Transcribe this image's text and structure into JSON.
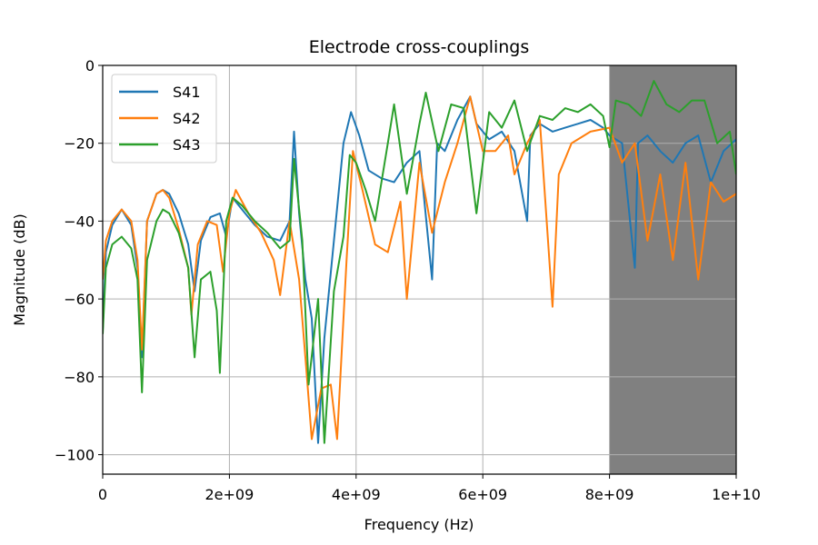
{
  "chart_data": {
    "type": "line",
    "title": "Electrode cross-couplings",
    "xlabel": "Frequency (Hz)",
    "ylabel": "Magnitude (dB)",
    "xlim": [
      0,
      10000000000
    ],
    "ylim": [
      -105,
      0
    ],
    "xticks": [
      0,
      2000000000,
      4000000000,
      6000000000,
      8000000000,
      10000000000
    ],
    "xtick_labels": [
      "0",
      "2e+09",
      "4e+09",
      "6e+09",
      "8e+09",
      "1e+10"
    ],
    "yticks": [
      0,
      -20,
      -40,
      -60,
      -80,
      -100
    ],
    "ytick_labels": [
      "0",
      "−20",
      "−40",
      "−60",
      "−80",
      "−100"
    ],
    "grid": true,
    "legend_position": "top-left",
    "shaded_region": {
      "x_from": 8000000000,
      "x_to": 10000000000,
      "color": "#808080"
    },
    "series": [
      {
        "name": "S41",
        "color": "#1f77b4",
        "x": [
          0,
          50000000,
          150000000,
          300000000,
          450000000,
          550000000,
          620000000,
          700000000,
          850000000,
          950000000,
          1050000000,
          1200000000,
          1350000000,
          1450000000,
          1550000000,
          1700000000,
          1850000000,
          1950000000,
          2050000000,
          2200000000,
          2400000000,
          2600000000,
          2800000000,
          2950000000,
          3020000000,
          3100000000,
          3200000000,
          3300000000,
          3400000000,
          3500000000,
          3650000000,
          3800000000,
          3920000000,
          4050000000,
          4200000000,
          4400000000,
          4600000000,
          4800000000,
          5000000000,
          5200000000,
          5280000000,
          5400000000,
          5600000000,
          5800000000,
          5900000000,
          6100000000,
          6300000000,
          6500000000,
          6700000000,
          6750000000,
          6900000000,
          7100000000,
          7300000000,
          7500000000,
          7700000000,
          7900000000,
          8000000000,
          8200000000,
          8400000000,
          8450000000,
          8600000000,
          8800000000,
          9000000000,
          9200000000,
          9400000000,
          9600000000,
          9800000000,
          10000000000
        ],
        "y": [
          -68,
          -48,
          -41,
          -37,
          -41,
          -52,
          -75,
          -40,
          -33,
          -32,
          -33,
          -38,
          -46,
          -58,
          -45,
          -39,
          -38,
          -44,
          -34,
          -37,
          -41,
          -44,
          -45,
          -40,
          -17,
          -38,
          -55,
          -65,
          -97,
          -70,
          -45,
          -20,
          -12,
          -18,
          -27,
          -29,
          -30,
          -25,
          -22,
          -55,
          -20,
          -22,
          -14,
          -8,
          -15,
          -19,
          -17,
          -22,
          -40,
          -18,
          -15,
          -17,
          -16,
          -15,
          -14,
          -16,
          -18,
          -20,
          -52,
          -20,
          -18,
          -22,
          -25,
          -20,
          -18,
          -30,
          -22,
          -19
        ]
      },
      {
        "name": "S42",
        "color": "#ff7f0e",
        "x": [
          0,
          50000000,
          150000000,
          300000000,
          450000000,
          550000000,
          620000000,
          700000000,
          850000000,
          950000000,
          1050000000,
          1200000000,
          1350000000,
          1400000000,
          1500000000,
          1650000000,
          1800000000,
          1900000000,
          2000000000,
          2100000000,
          2300000000,
          2500000000,
          2700000000,
          2800000000,
          2950000000,
          3100000000,
          3200000000,
          3300000000,
          3450000000,
          3600000000,
          3700000000,
          3850000000,
          3950000000,
          4100000000,
          4300000000,
          4500000000,
          4700000000,
          4800000000,
          5000000000,
          5200000000,
          5400000000,
          5600000000,
          5800000000,
          6000000000,
          6200000000,
          6400000000,
          6500000000,
          6700000000,
          6900000000,
          7100000000,
          7200000000,
          7400000000,
          7700000000,
          8000000000,
          8200000000,
          8400000000,
          8600000000,
          8800000000,
          9000000000,
          9200000000,
          9400000000,
          9600000000,
          9800000000,
          10000000000
        ],
        "y": [
          -55,
          -45,
          -40,
          -37,
          -40,
          -50,
          -73,
          -40,
          -33,
          -32,
          -34,
          -42,
          -52,
          -64,
          -46,
          -40,
          -41,
          -53,
          -38,
          -32,
          -38,
          -43,
          -50,
          -59,
          -40,
          -55,
          -75,
          -96,
          -83,
          -82,
          -96,
          -50,
          -22,
          -32,
          -46,
          -48,
          -35,
          -60,
          -25,
          -43,
          -30,
          -20,
          -8,
          -22,
          -22,
          -18,
          -28,
          -20,
          -14,
          -62,
          -28,
          -20,
          -17,
          -16,
          -25,
          -20,
          -45,
          -28,
          -50,
          -25,
          -55,
          -30,
          -35,
          -33
        ]
      },
      {
        "name": "S43",
        "color": "#2ca02c",
        "x": [
          0,
          50000000,
          150000000,
          300000000,
          450000000,
          550000000,
          620000000,
          700000000,
          850000000,
          950000000,
          1050000000,
          1200000000,
          1350000000,
          1450000000,
          1550000000,
          1700000000,
          1800000000,
          1850000000,
          1950000000,
          2050000000,
          2200000000,
          2400000000,
          2600000000,
          2800000000,
          2950000000,
          3020000000,
          3150000000,
          3250000000,
          3400000000,
          3500000000,
          3650000000,
          3800000000,
          3900000000,
          4000000000,
          4150000000,
          4300000000,
          4500000000,
          4600000000,
          4800000000,
          5000000000,
          5100000000,
          5300000000,
          5500000000,
          5700000000,
          5900000000,
          6100000000,
          6300000000,
          6500000000,
          6700000000,
          6900000000,
          7100000000,
          7300000000,
          7500000000,
          7700000000,
          7900000000,
          8000000000,
          8100000000,
          8300000000,
          8500000000,
          8700000000,
          8900000000,
          9100000000,
          9300000000,
          9500000000,
          9700000000,
          9900000000,
          10000000000
        ],
        "y": [
          -69,
          -52,
          -46,
          -44,
          -47,
          -55,
          -84,
          -50,
          -40,
          -37,
          -38,
          -43,
          -52,
          -75,
          -55,
          -53,
          -63,
          -79,
          -40,
          -34,
          -36,
          -40,
          -43,
          -47,
          -45,
          -24,
          -45,
          -82,
          -60,
          -97,
          -58,
          -44,
          -23,
          -25,
          -32,
          -40,
          -20,
          -10,
          -33,
          -15,
          -7,
          -22,
          -10,
          -11,
          -38,
          -12,
          -16,
          -9,
          -22,
          -13,
          -14,
          -11,
          -12,
          -10,
          -13,
          -21,
          -9,
          -10,
          -13,
          -4,
          -10,
          -12,
          -9,
          -9,
          -20,
          -17,
          -28
        ]
      }
    ]
  }
}
